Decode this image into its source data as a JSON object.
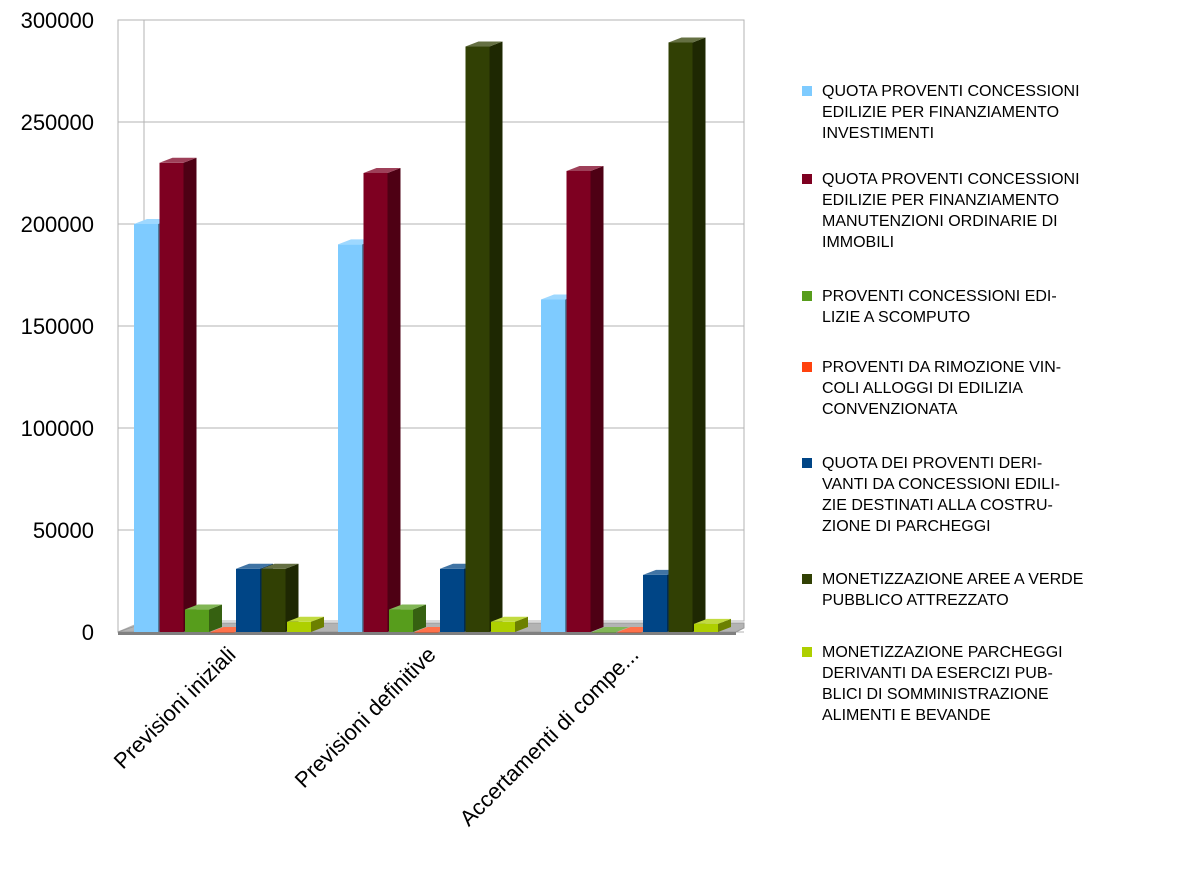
{
  "chart_data": {
    "type": "bar",
    "style": "3d-column",
    "categories": [
      "Previsioni iniziali",
      "Previsioni definitive",
      "Accertamenti di compe..."
    ],
    "series": [
      {
        "name": "QUOTA PROVENTI CONCESSIONI EDILIZIE PER FINANZIAMENTO INVESTIMENTI",
        "legend_lines": [
          "QUOTA PROVENTI CONCESSIONI",
          "EDILIZIE PER FINANZIAMENTO",
          "INVESTIMENTI"
        ],
        "color": "#7ecbff",
        "values": [
          200000,
          190000,
          163000
        ]
      },
      {
        "name": "QUOTA PROVENTI CONCESSIONI EDILIZIE PER FINANZIAMENTO MANUTENZIONI ORDINARIE DI IMMOBILI",
        "legend_lines": [
          "QUOTA PROVENTI CONCESSIONI",
          "EDILIZIE PER FINANZIAMENTO",
          "MANUTENZIONI ORDINARIE DI",
          "IMMOBILI"
        ],
        "color": "#7e0021",
        "values": [
          230000,
          225000,
          226000
        ]
      },
      {
        "name": "PROVENTI CONCESSIONI EDILIZIE A SCOMPUTO",
        "legend_lines": [
          "PROVENTI CONCESSIONI EDI-",
          "LIZIE A SCOMPUTO"
        ],
        "color": "#579d1c",
        "values": [
          11000,
          11000,
          0
        ]
      },
      {
        "name": "PROVENTI DA RIMOZIONE VINCOLI ALLOGGI DI EDILIZIA CONVENZIONATA",
        "legend_lines": [
          "PROVENTI DA RIMOZIONE VIN-",
          "COLI ALLOGGI DI EDILIZIA",
          "CONVENZIONATA"
        ],
        "color": "#ff420e",
        "values": [
          0,
          0,
          0
        ]
      },
      {
        "name": "QUOTA DEI PROVENTI DERIVANTI DA CONCESSIONI EDILIZIE DESTINATI ALLA COSTRUZIONE DI PARCHEGGI",
        "legend_lines": [
          "QUOTA DEI PROVENTI DERI-",
          "VANTI  DA CONCESSIONI EDILI-",
          "ZIE DESTINATI ALLA COSTRU-",
          "ZIONE DI PARCHEGGI"
        ],
        "color": "#004586",
        "values": [
          31000,
          31000,
          28000
        ]
      },
      {
        "name": "MONETIZZAZIONE AREE A VERDE PUBBLICO ATTREZZATO",
        "legend_lines": [
          "MONETIZZAZIONE AREE A VERDE",
          "PUBBLICO ATTREZZATO"
        ],
        "color": "#314004",
        "values": [
          31000,
          287000,
          289000
        ]
      },
      {
        "name": "MONETIZZAZIONE PARCHEGGI DERIVANTI DA ESERCIZI PUBBLICI DI SOMMINISTRAZIONE ALIMENTI E BEVANDE",
        "legend_lines": [
          "MONETIZZAZIONE PARCHEGGI",
          "DERIVANTI DA ESERCIZI PUB-",
          "BLICI DI SOMMINISTRAZIONE",
          "ALIMENTI E BEVANDE"
        ],
        "color": "#aecf00",
        "values": [
          5000,
          5000,
          4000
        ]
      }
    ],
    "yticks": [
      "0",
      "50000",
      "100000",
      "150000",
      "200000",
      "250000",
      "300000"
    ],
    "ylim": [
      0,
      300000
    ],
    "grid": true,
    "legend_position": "right"
  }
}
